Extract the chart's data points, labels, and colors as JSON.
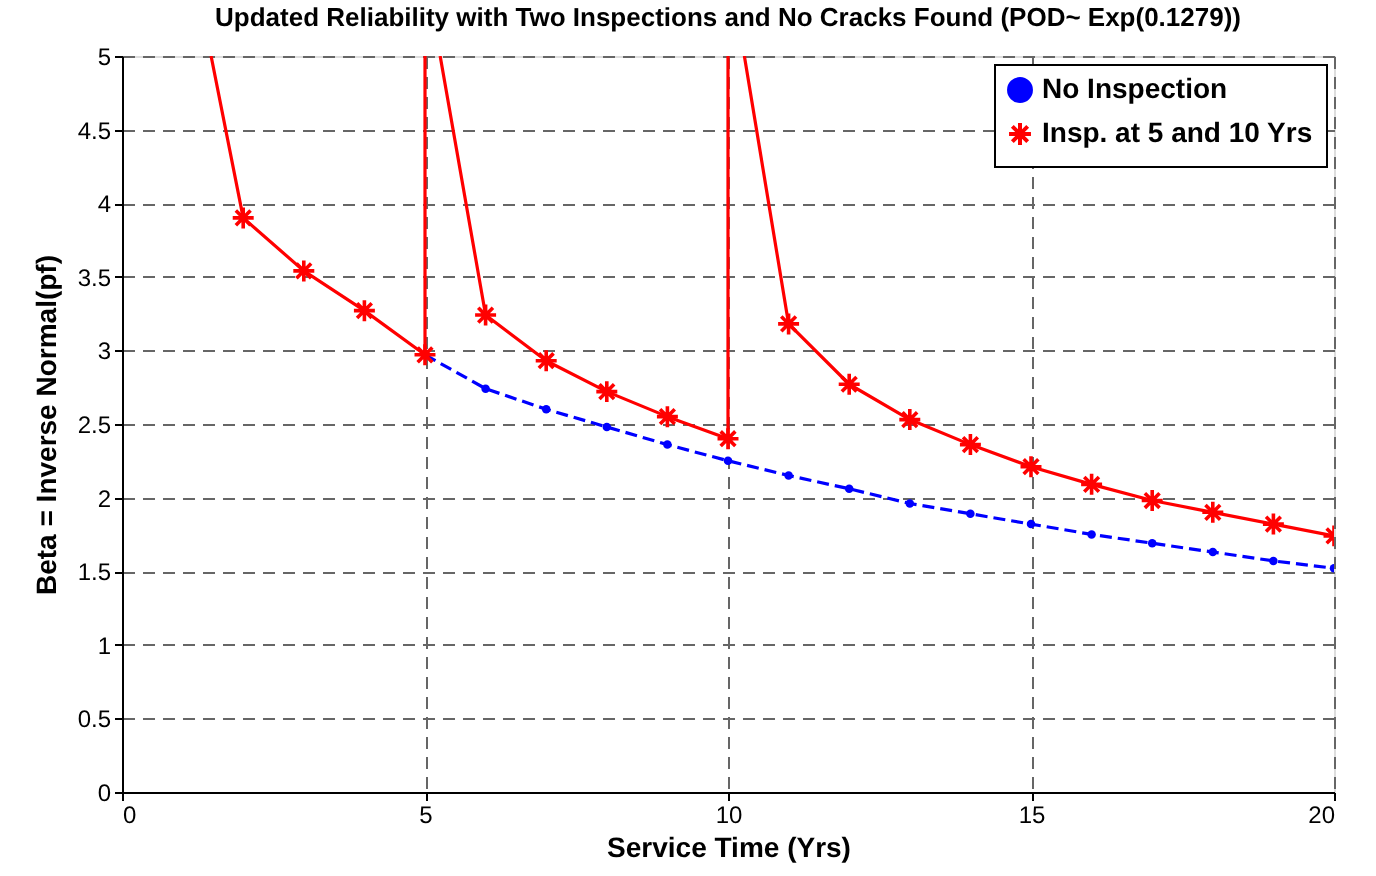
{
  "chart_data": {
    "type": "line",
    "title": "Updated Reliability with Two Inspections and No Cracks Found (POD~ Exp(0.1279))",
    "xlabel": "Service Time (Yrs)",
    "ylabel": "Beta = Inverse Normal(pf)",
    "xlim": [
      0,
      20
    ],
    "xticks": [
      0,
      5,
      10,
      15,
      20
    ],
    "ylim": [
      0,
      5
    ],
    "yticks": [
      0,
      0.5,
      1,
      1.5,
      2,
      2.5,
      3,
      3.5,
      4,
      4.5,
      5
    ],
    "grid": true,
    "legend": "top right",
    "series": [
      {
        "name": "No Inspection",
        "color": "#0000ff",
        "line_style": "dashed",
        "marker": "circle",
        "x": [
          5,
          6,
          7,
          8,
          9,
          10,
          11,
          12,
          13,
          14,
          15,
          16,
          17,
          18,
          19,
          20
        ],
        "values": [
          2.97,
          2.74,
          2.6,
          2.48,
          2.36,
          2.25,
          2.15,
          2.06,
          1.96,
          1.89,
          1.82,
          1.75,
          1.69,
          1.63,
          1.57,
          1.52
        ]
      },
      {
        "name": "Insp. at 5 and 10 Yrs",
        "color": "#ff0000",
        "line_style": "solid",
        "marker": "cross",
        "x": [
          2,
          3,
          4,
          5,
          5.5,
          6,
          7,
          8,
          9,
          10,
          10.5,
          11,
          12,
          13,
          14,
          15,
          16,
          17,
          18,
          19,
          20
        ],
        "values": [
          3.9,
          3.54,
          3.27,
          2.97,
          null,
          3.24,
          2.93,
          2.72,
          2.55,
          2.4,
          null,
          3.18,
          2.77,
          2.53,
          2.36,
          2.21,
          2.09,
          1.98,
          1.9,
          1.82,
          1.74
        ]
      },
      {
        "color": "#ff0000",
        "line_style": "solid",
        "marker": "none",
        "x": [
          1.47,
          2,
          3,
          5,
          5,
          5.1,
          5.25,
          6,
          7,
          10,
          10,
          10.1,
          10.27,
          11
        ],
        "values": [
          5,
          3.9,
          null,
          2.97,
          5,
          null,
          5,
          3.24,
          null,
          2.4,
          5,
          null,
          5,
          3.18
        ]
      }
    ]
  }
}
